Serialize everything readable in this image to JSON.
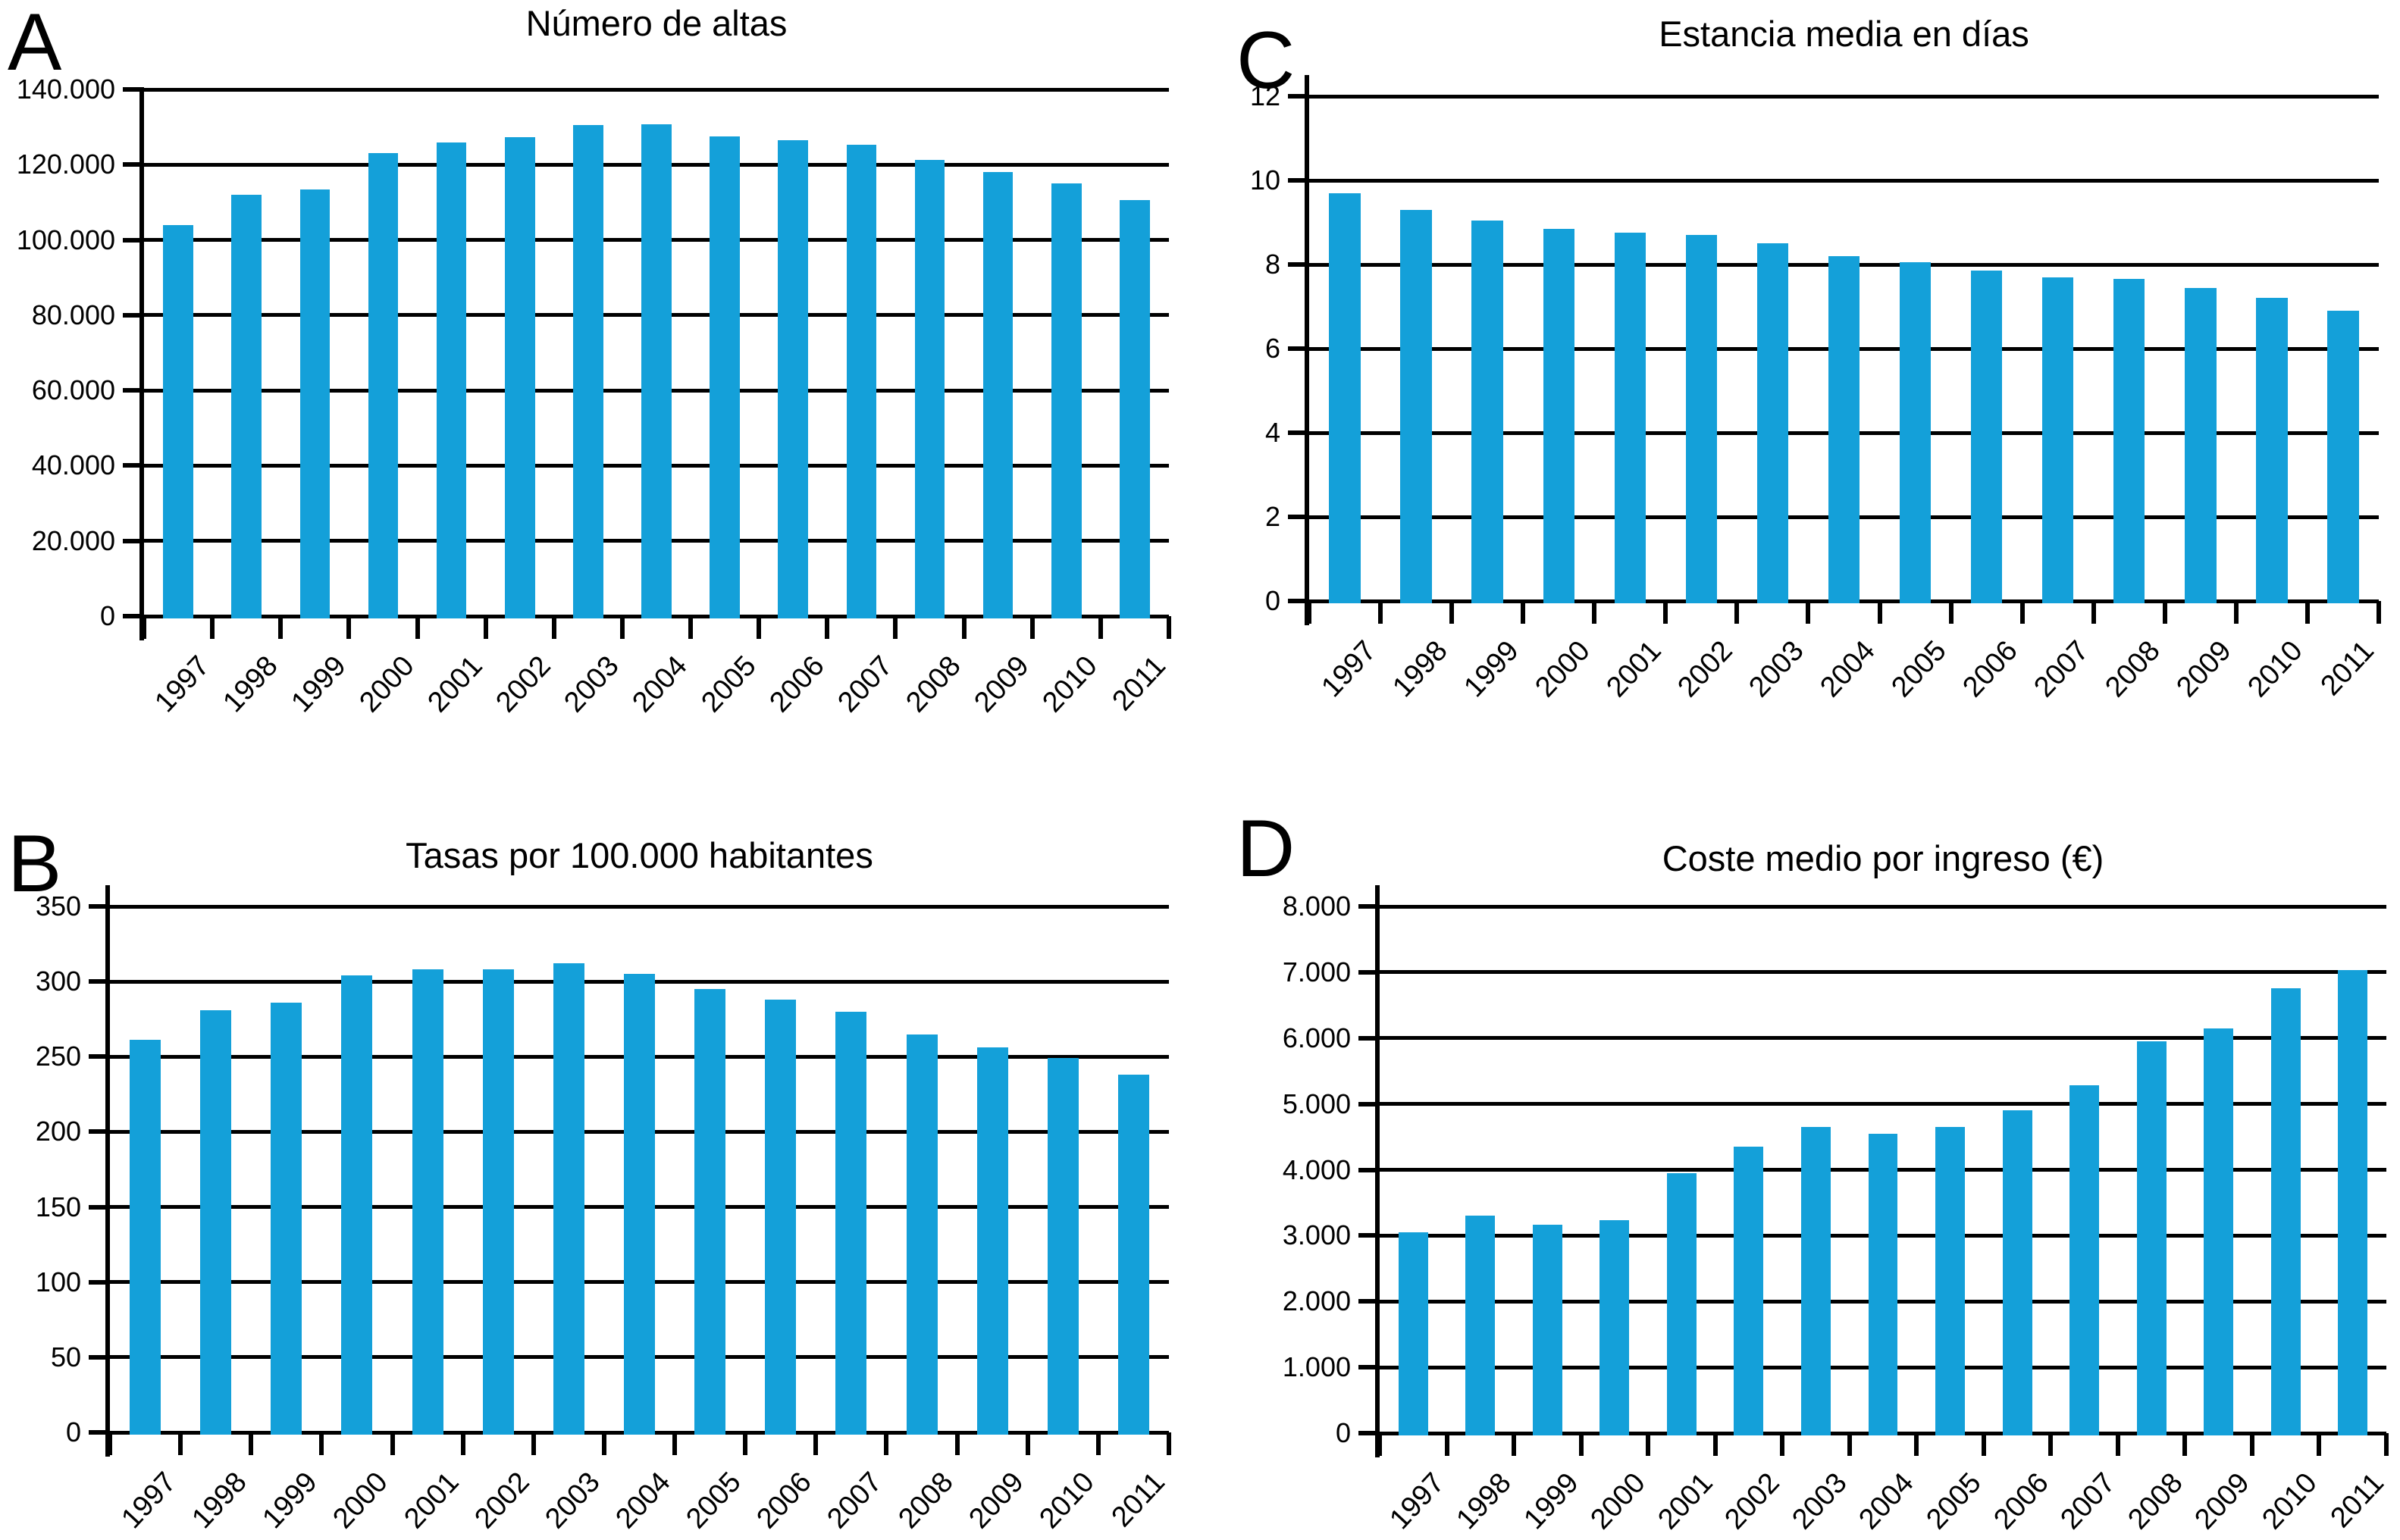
{
  "figure": {
    "background": "#FFFFFF",
    "bar_color": "#14A0D9",
    "axis_color": "#000000",
    "text_color": "#000000"
  },
  "chart_data": [
    {
      "id": "A",
      "position": "top-left",
      "type": "bar",
      "title": "Número de altas",
      "categories": [
        "1997",
        "1998",
        "1999",
        "2000",
        "2001",
        "2002",
        "2003",
        "2004",
        "2005",
        "2006",
        "2007",
        "2008",
        "2009",
        "2010",
        "2011"
      ],
      "values": [
        104000,
        112000,
        113500,
        123000,
        126000,
        127300,
        130500,
        130700,
        127500,
        126500,
        125200,
        121200,
        118000,
        115000,
        110500
      ],
      "xlabel": "",
      "ylabel": "",
      "ylim": [
        0,
        140000
      ],
      "ytick_step": 20000,
      "ytick_labels_top_to_bottom": [
        "140.000",
        "120.000",
        "100.000",
        "80.000",
        "60.000",
        "40.000",
        "20.000",
        "0"
      ],
      "grid": true,
      "legend": "none"
    },
    {
      "id": "B",
      "position": "bottom-left",
      "type": "bar",
      "title": "Tasas por 100.000 habitantes",
      "categories": [
        "1997",
        "1998",
        "1999",
        "2000",
        "2001",
        "2002",
        "2003",
        "2004",
        "2005",
        "2006",
        "2007",
        "2008",
        "2009",
        "2010",
        "2011"
      ],
      "values": [
        261,
        281,
        286,
        304,
        308,
        308,
        312,
        305,
        295,
        288,
        280,
        265,
        256,
        249,
        238
      ],
      "xlabel": "",
      "ylabel": "",
      "ylim": [
        0,
        350
      ],
      "ytick_step": 50,
      "ytick_labels_top_to_bottom": [
        "350",
        "300",
        "250",
        "200",
        "150",
        "100",
        "50",
        "0"
      ],
      "grid": true,
      "legend": "none"
    },
    {
      "id": "C",
      "position": "top-right",
      "type": "bar",
      "title": "Estancia media en días",
      "categories": [
        "1997",
        "1998",
        "1999",
        "2000",
        "2001",
        "2002",
        "2003",
        "2004",
        "2005",
        "2006",
        "2007",
        "2008",
        "2009",
        "2010",
        "2011"
      ],
      "values": [
        9.7,
        9.3,
        9.05,
        8.85,
        8.75,
        8.7,
        8.5,
        8.2,
        8.05,
        7.85,
        7.7,
        7.65,
        7.45,
        7.2,
        6.9
      ],
      "xlabel": "",
      "ylabel": "",
      "ylim": [
        0,
        12
      ],
      "ytick_step": 2,
      "ytick_labels_top_to_bottom": [
        "12",
        "10",
        "8",
        "6",
        "4",
        "2",
        "0"
      ],
      "grid": true,
      "legend": "none"
    },
    {
      "id": "D",
      "position": "bottom-right",
      "type": "bar",
      "title": "Coste medio por ingreso (€)",
      "categories": [
        "1997",
        "1998",
        "1999",
        "2000",
        "2001",
        "2002",
        "2003",
        "2004",
        "2005",
        "2006",
        "2007",
        "2008",
        "2009",
        "2010",
        "2011"
      ],
      "values": [
        3050,
        3300,
        3170,
        3230,
        3950,
        4350,
        4650,
        4550,
        4650,
        4900,
        5280,
        5950,
        6150,
        6760,
        7030
      ],
      "xlabel": "",
      "ylabel": "",
      "ylim": [
        0,
        8000
      ],
      "ytick_step": 1000,
      "ytick_labels_top_to_bottom": [
        "8.000",
        "7.000",
        "6.000",
        "5.000",
        "4.000",
        "3.000",
        "2.000",
        "1.000",
        "0"
      ],
      "grid": true,
      "legend": "none"
    }
  ]
}
